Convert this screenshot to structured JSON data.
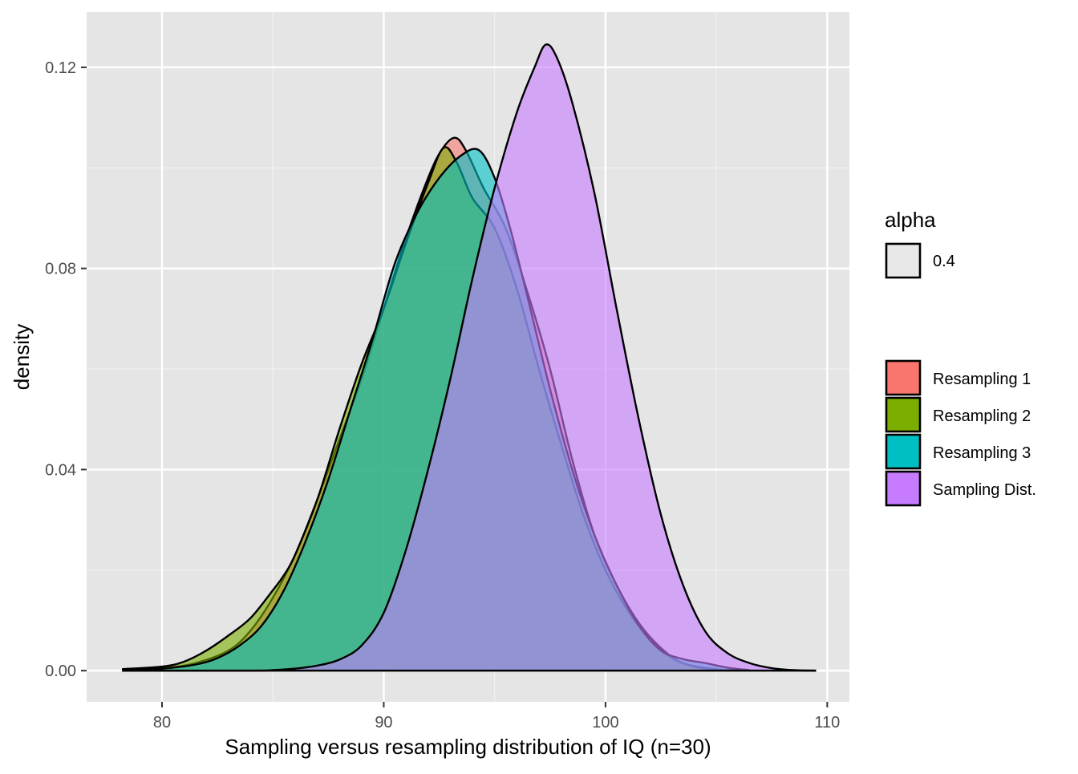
{
  "chart_data": {
    "type": "area",
    "subtype": "density",
    "title": "",
    "xlabel": "Sampling versus resampling distribution of IQ (n=30)",
    "ylabel": "density",
    "xlim": [
      76.6,
      111.0
    ],
    "ylim": [
      -0.0062,
      0.131
    ],
    "x_ticks": [
      80,
      90,
      100,
      110
    ],
    "x_tick_labels": [
      "80",
      "90",
      "100",
      "110"
    ],
    "y_ticks": [
      0.0,
      0.04,
      0.08,
      0.12
    ],
    "y_tick_labels": [
      "0.00",
      "0.04",
      "0.08",
      "0.12"
    ],
    "grid": true,
    "background": "#e5e5e5",
    "fill_alpha": 0.6,
    "legend_placement": "right",
    "alpha_legend": {
      "title": "alpha",
      "entries": [
        "0.4"
      ]
    },
    "series": [
      {
        "name": "Resampling 1",
        "color": "#f8766d",
        "points": [
          [
            78.2,
            0.0002
          ],
          [
            80,
            0.0005
          ],
          [
            81.5,
            0.0015
          ],
          [
            83,
            0.004
          ],
          [
            84,
            0.008
          ],
          [
            85,
            0.0145
          ],
          [
            86,
            0.023
          ],
          [
            87,
            0.034
          ],
          [
            88,
            0.046
          ],
          [
            89,
            0.058
          ],
          [
            90,
            0.072
          ],
          [
            91,
            0.086
          ],
          [
            92,
            0.098
          ],
          [
            92.6,
            0.1035
          ],
          [
            93.2,
            0.106
          ],
          [
            93.7,
            0.1035
          ],
          [
            94.5,
            0.096
          ],
          [
            95.5,
            0.088
          ],
          [
            96.5,
            0.075
          ],
          [
            97.5,
            0.06
          ],
          [
            98.5,
            0.042
          ],
          [
            99.5,
            0.027
          ],
          [
            100.5,
            0.017
          ],
          [
            101.5,
            0.0095
          ],
          [
            102.5,
            0.0045
          ],
          [
            103.5,
            0.0015
          ],
          [
            105,
            0.0003
          ],
          [
            106,
            0.0001
          ]
        ]
      },
      {
        "name": "Resampling 2",
        "color": "#7cae00",
        "points": [
          [
            78.2,
            0.0003
          ],
          [
            80,
            0.0008
          ],
          [
            81,
            0.0018
          ],
          [
            82,
            0.004
          ],
          [
            83,
            0.007
          ],
          [
            84,
            0.0105
          ],
          [
            85,
            0.016
          ],
          [
            85.5,
            0.019
          ],
          [
            86,
            0.023
          ],
          [
            87,
            0.034
          ],
          [
            88,
            0.048
          ],
          [
            89,
            0.061
          ],
          [
            90,
            0.072
          ],
          [
            91,
            0.085
          ],
          [
            92,
            0.097
          ],
          [
            92.7,
            0.104
          ],
          [
            93.3,
            0.101
          ],
          [
            94,
            0.094
          ],
          [
            95,
            0.088
          ],
          [
            96,
            0.076
          ],
          [
            97,
            0.06
          ],
          [
            98,
            0.045
          ],
          [
            99,
            0.031
          ],
          [
            100,
            0.02
          ],
          [
            101,
            0.012
          ],
          [
            102,
            0.0062
          ],
          [
            103,
            0.0025
          ],
          [
            104,
            0.0008
          ],
          [
            105,
            0.0002
          ]
        ]
      },
      {
        "name": "Resampling 3",
        "color": "#00bfc4",
        "points": [
          [
            78.3,
            0.0001
          ],
          [
            80,
            0.0004
          ],
          [
            81.5,
            0.0012
          ],
          [
            82.5,
            0.0025
          ],
          [
            83.5,
            0.005
          ],
          [
            84.5,
            0.009
          ],
          [
            85.5,
            0.016
          ],
          [
            86.5,
            0.026
          ],
          [
            87.5,
            0.038
          ],
          [
            88.5,
            0.052
          ],
          [
            89.5,
            0.066
          ],
          [
            90.5,
            0.081
          ],
          [
            91.5,
            0.091
          ],
          [
            92.5,
            0.098
          ],
          [
            93.5,
            0.1025
          ],
          [
            94.3,
            0.1035
          ],
          [
            95,
            0.098
          ],
          [
            95.7,
            0.088
          ],
          [
            96.5,
            0.074
          ],
          [
            97.5,
            0.056
          ],
          [
            98.5,
            0.04
          ],
          [
            99.5,
            0.027
          ],
          [
            100.5,
            0.017
          ],
          [
            101.5,
            0.009
          ],
          [
            102.5,
            0.004
          ],
          [
            103.5,
            0.0023
          ],
          [
            104.5,
            0.0015
          ],
          [
            105.5,
            0.0006
          ],
          [
            106.5,
            0.0001
          ]
        ]
      },
      {
        "name": "Sampling Dist.",
        "color": "#c77cff",
        "points": [
          [
            78.2,
            0.0
          ],
          [
            84,
            0.0
          ],
          [
            85,
            0.0001
          ],
          [
            86,
            0.0004
          ],
          [
            87,
            0.001
          ],
          [
            88,
            0.0022
          ],
          [
            89,
            0.005
          ],
          [
            90,
            0.0115
          ],
          [
            91,
            0.024
          ],
          [
            92,
            0.04
          ],
          [
            93,
            0.058
          ],
          [
            94,
            0.078
          ],
          [
            95,
            0.096
          ],
          [
            96,
            0.111
          ],
          [
            96.8,
            0.12
          ],
          [
            97.3,
            0.1245
          ],
          [
            97.8,
            0.122
          ],
          [
            98.5,
            0.113
          ],
          [
            99.5,
            0.095
          ],
          [
            100.5,
            0.072
          ],
          [
            101.5,
            0.05
          ],
          [
            102.5,
            0.031
          ],
          [
            103.5,
            0.017
          ],
          [
            104.5,
            0.0078
          ],
          [
            105.5,
            0.0035
          ],
          [
            106.5,
            0.0015
          ],
          [
            107.5,
            0.0005
          ],
          [
            108.5,
            0.0001
          ],
          [
            109.5,
            0.0
          ]
        ]
      }
    ]
  }
}
